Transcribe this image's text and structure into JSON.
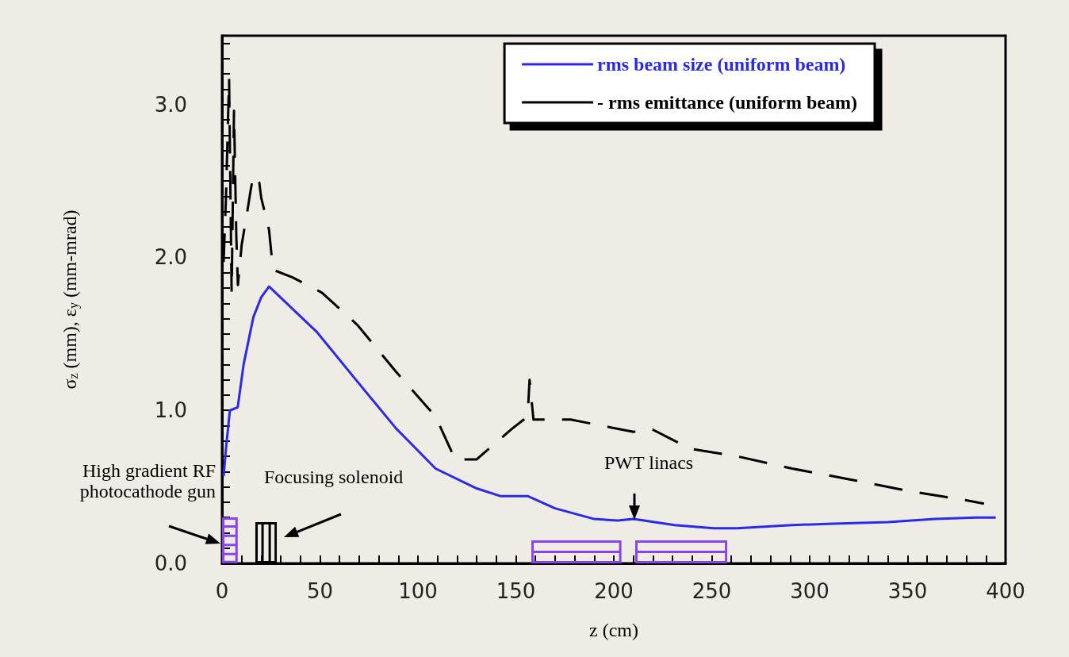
{
  "chart_data": {
    "type": "line",
    "xlabel": "z (cm)",
    "ylabel": "σ$_{z}$ (mm), ε$_{y}$ (mm-mrad)",
    "xlim": [
      0,
      400
    ],
    "ylim": [
      0,
      3.45
    ],
    "xticks": [
      0,
      {
        "value": 10,
        "label": null
      },
      {
        "value": 20,
        "label": null
      },
      {
        "value": 30,
        "label": null
      },
      {
        "value": 40,
        "label": null
      },
      50,
      {
        "value": 60,
        "label": null
      },
      {
        "value": 70,
        "label": null
      },
      {
        "value": 80,
        "label": null
      },
      {
        "value": 90,
        "label": null
      },
      100,
      {
        "value": 110,
        "label": null
      },
      {
        "value": 120,
        "label": null
      },
      {
        "value": 130,
        "label": null
      },
      {
        "value": 140,
        "label": null
      },
      150,
      {
        "value": 160,
        "label": null
      },
      {
        "value": 170,
        "label": null
      },
      {
        "value": 180,
        "label": null
      },
      {
        "value": 190,
        "label": null
      },
      200,
      {
        "value": 210,
        "label": null
      },
      {
        "value": 220,
        "label": null
      },
      {
        "value": 230,
        "label": null
      },
      {
        "value": 240,
        "label": null
      },
      250,
      {
        "value": 260,
        "label": null
      },
      {
        "value": 270,
        "label": null
      },
      {
        "value": 280,
        "label": null
      },
      {
        "value": 290,
        "label": null
      },
      300,
      {
        "value": 310,
        "label": null
      },
      {
        "value": 320,
        "label": null
      },
      {
        "value": 330,
        "label": null
      },
      {
        "value": 340,
        "label": null
      },
      350,
      {
        "value": 360,
        "label": null
      },
      {
        "value": 370,
        "label": null
      },
      {
        "value": 380,
        "label": null
      },
      {
        "value": 390,
        "label": null
      },
      400
    ],
    "yticks": [
      {
        "value": 0,
        "label": "0.0"
      },
      {
        "value": 0.1,
        "label": null
      },
      {
        "value": 0.2,
        "label": null
      },
      {
        "value": 0.3,
        "label": null
      },
      {
        "value": 0.4,
        "label": null
      },
      {
        "value": 0.5,
        "label": null
      },
      {
        "value": 0.6,
        "label": null
      },
      {
        "value": 0.7,
        "label": null
      },
      {
        "value": 0.8,
        "label": null
      },
      {
        "value": 0.9,
        "label": null
      },
      {
        "value": 1,
        "label": "1.0"
      },
      {
        "value": 1.1,
        "label": null
      },
      {
        "value": 1.2,
        "label": null
      },
      {
        "value": 1.3,
        "label": null
      },
      {
        "value": 1.4,
        "label": null
      },
      {
        "value": 1.5,
        "label": null
      },
      {
        "value": 1.6,
        "label": null
      },
      {
        "value": 1.7,
        "label": null
      },
      {
        "value": 1.8,
        "label": null
      },
      {
        "value": 1.9,
        "label": null
      },
      {
        "value": 2,
        "label": "2.0"
      },
      {
        "value": 2.1,
        "label": null
      },
      {
        "value": 2.2,
        "label": null
      },
      {
        "value": 2.3,
        "label": null
      },
      {
        "value": 2.4,
        "label": null
      },
      {
        "value": 2.5,
        "label": null
      },
      {
        "value": 2.6,
        "label": null
      },
      {
        "value": 2.7,
        "label": null
      },
      {
        "value": 2.8,
        "label": null
      },
      {
        "value": 2.9,
        "label": null
      },
      {
        "value": 3,
        "label": "3.0"
      },
      {
        "value": 3.1,
        "label": null
      },
      {
        "value": 3.2,
        "label": null
      },
      {
        "value": 3.3,
        "label": null
      },
      {
        "value": 3.4,
        "label": null
      }
    ],
    "legend": "top right",
    "grid": false,
    "marker": "none",
    "annotations": [
      "High gradient RF\nphotocathode gun",
      "Focusing solenoid",
      "PWT linacs"
    ],
    "series": [
      {
        "name": "rms beam size (uniform beam)",
        "color": "#2a2ae8",
        "line_style": "solid",
        "x": [
          0.8,
          2,
          4,
          8,
          11,
          16,
          20,
          24,
          48.6,
          69,
          89,
          109,
          130,
          142,
          156,
          170,
          190,
          202,
          210,
          231,
          251,
          263,
          291,
          312,
          340,
          364,
          385,
          395
        ],
        "values": [
          0.57,
          0.75,
          1.0,
          1.02,
          1.3,
          1.61,
          1.74,
          1.81,
          1.51,
          1.19,
          0.88,
          0.62,
          0.49,
          0.44,
          0.44,
          0.36,
          0.29,
          0.28,
          0.29,
          0.25,
          0.23,
          0.23,
          0.25,
          0.26,
          0.27,
          0.29,
          0.3,
          0.3
        ]
      },
      {
        "name": "- rms emittance (uniform beam)",
        "color": "#000000",
        "line_style": "dashed",
        "x": [
          0.8,
          2,
          3.6,
          4.9,
          6.1,
          7.3,
          8.1,
          10,
          13,
          14.6,
          16,
          19,
          20,
          24,
          26,
          36,
          51,
          69,
          89,
          109,
          119,
          130,
          148,
          156,
          157,
          159,
          178,
          198,
          210,
          219,
          239,
          263,
          291,
          320,
          352,
          381,
          389
        ],
        "values": [
          1.97,
          2.39,
          3.17,
          1.77,
          2.96,
          2.13,
          1.82,
          2.08,
          2.31,
          2.44,
          2.54,
          2.49,
          2.39,
          2.18,
          1.92,
          1.87,
          1.77,
          1.56,
          1.25,
          0.96,
          0.68,
          0.68,
          0.88,
          0.96,
          1.2,
          0.94,
          0.94,
          0.89,
          0.86,
          0.88,
          0.75,
          0.7,
          0.62,
          0.55,
          0.47,
          0.41,
          0.39
        ]
      }
    ]
  }
}
